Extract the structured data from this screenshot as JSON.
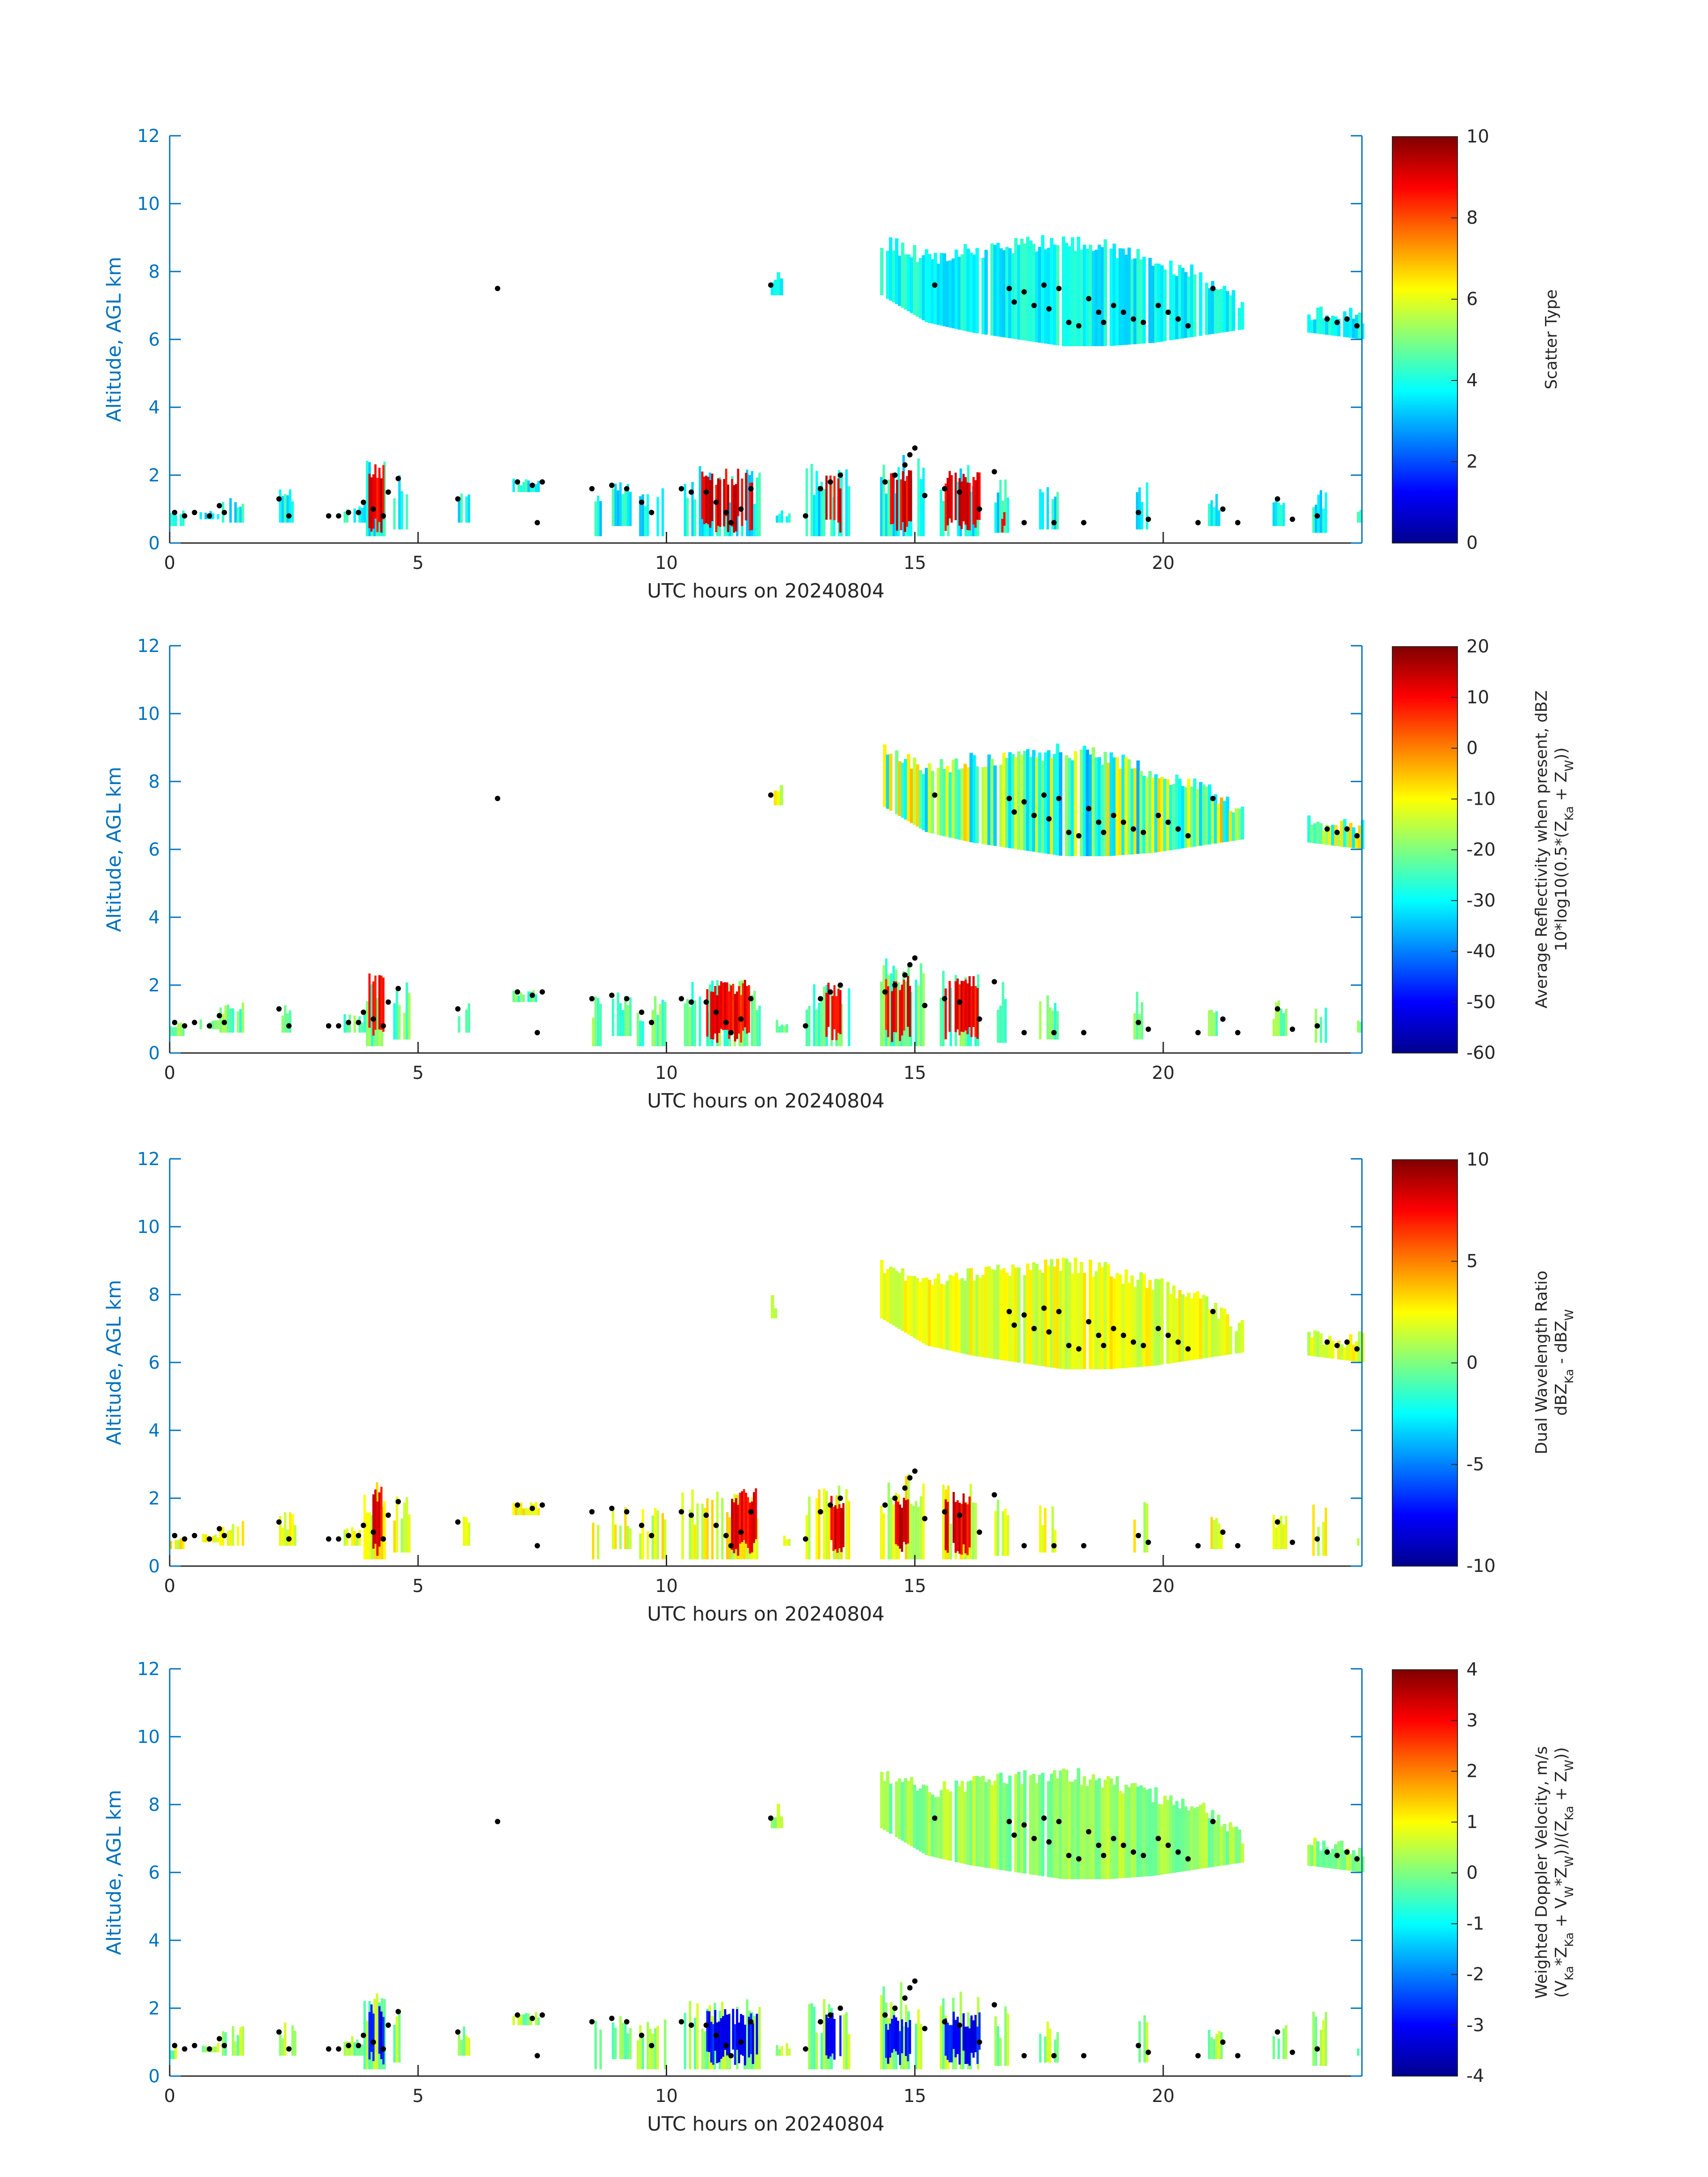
{
  "colormap": [
    "#00008F",
    "#0000FF",
    "#0080FF",
    "#00FFFF",
    "#80FF80",
    "#FFFF00",
    "#FF8000",
    "#FF0000",
    "#800000"
  ],
  "colors": {
    "axis_blue": "#0072BD",
    "text_dark": "#262626",
    "marker": "#000000"
  },
  "chart_data": [
    {
      "type": "heatmap",
      "xlabel": "UTC hours on 20240804",
      "ylabel": "Altitude, AGL km",
      "xlim": [
        0,
        24
      ],
      "ylim": [
        0,
        12
      ],
      "xticks": [
        "0",
        "5",
        "10",
        "15",
        "20"
      ],
      "yticks": [
        "0",
        "2",
        "4",
        "6",
        "8",
        "10",
        "12"
      ],
      "colorbar": {
        "label_lines": [
          "Scatter Type"
        ],
        "range": [
          0,
          10
        ],
        "ticks": [
          "0",
          "2",
          "4",
          "6",
          "8",
          "10"
        ]
      },
      "fill_value": 3.8,
      "high_value": 9
    },
    {
      "type": "heatmap",
      "xlabel": "UTC hours on 20240804",
      "ylabel": "Altitude, AGL km",
      "xlim": [
        0,
        24
      ],
      "ylim": [
        0,
        12
      ],
      "xticks": [
        "0",
        "5",
        "10",
        "15",
        "20"
      ],
      "yticks": [
        "0",
        "2",
        "4",
        "6",
        "8",
        "10",
        "12"
      ],
      "colorbar": {
        "label_lines": [
          "Average Reflectivity when present, dBZ",
          "10*log10(0.5*(Z_Ka + Z_W))"
        ],
        "range": [
          -60,
          20
        ],
        "ticks": [
          "-60",
          "-50",
          "-40",
          "-30",
          "-20",
          "-10",
          "0",
          "10",
          "20"
        ]
      },
      "fill_value": -22,
      "high_value": 10
    },
    {
      "type": "heatmap",
      "xlabel": "UTC hours on 20240804",
      "ylabel": "Altitude, AGL km",
      "xlim": [
        0,
        24
      ],
      "ylim": [
        0,
        12
      ],
      "xticks": [
        "0",
        "5",
        "10",
        "15",
        "20"
      ],
      "yticks": [
        "0",
        "2",
        "4",
        "6",
        "8",
        "10",
        "12"
      ],
      "colorbar": {
        "label_lines": [
          "Dual Wavelength Ratio",
          "dBZ_Ka - dBZ_W"
        ],
        "range": [
          -10,
          10
        ],
        "ticks": [
          "-10",
          "-5",
          "0",
          "5",
          "10"
        ]
      },
      "fill_value": 2,
      "high_value": 8
    },
    {
      "type": "heatmap",
      "xlabel": "UTC hours on 20240804",
      "ylabel": "Altitude, AGL km",
      "xlim": [
        0,
        24
      ],
      "ylim": [
        0,
        12
      ],
      "xticks": [
        "0",
        "5",
        "10",
        "15",
        "20"
      ],
      "yticks": [
        "0",
        "2",
        "4",
        "6",
        "8",
        "10",
        "12"
      ],
      "colorbar": {
        "label_lines": [
          "Weighted Doppler Velocity, m/s",
          "(V_Ka*Z_Ka + V_W*Z_W))/(Z_Ka + Z_W))"
        ],
        "range": [
          -4,
          4
        ],
        "ticks": [
          "-4",
          "-3",
          "-2",
          "-1",
          "0",
          "1",
          "2",
          "3",
          "4"
        ]
      },
      "fill_value": 0.2,
      "high_value": -3
    }
  ],
  "cloud_regions": [
    {
      "x0": 14.3,
      "x1": 21.6,
      "ybot": [
        7.3,
        6.5,
        6.2,
        6.0,
        5.8,
        5.8,
        5.9,
        6.1,
        6.3
      ],
      "ytop": [
        8.9,
        8.4,
        8.6,
        8.8,
        8.9,
        8.7,
        8.3,
        7.9,
        7.0
      ]
    },
    {
      "x0": 22.9,
      "x1": 24.0,
      "ybot": [
        6.2,
        6.1,
        6.0
      ],
      "ytop": [
        6.8,
        6.7,
        6.7
      ]
    },
    {
      "x0": 12.1,
      "x1": 12.3,
      "ybot": [
        7.3,
        7.3
      ],
      "ytop": [
        7.8,
        7.8
      ]
    }
  ],
  "low_columns": [
    [
      0.0,
      0.5,
      1.0,
      0.3
    ],
    [
      0.6,
      0.7,
      1.0,
      0.4
    ],
    [
      1.0,
      0.6,
      1.5,
      0.5
    ],
    [
      2.2,
      0.6,
      1.6,
      0.3
    ],
    [
      3.5,
      0.6,
      1.2,
      0.5
    ],
    [
      3.9,
      0.2,
      2.5,
      0.4
    ],
    [
      4.5,
      0.4,
      2.1,
      0.3
    ],
    [
      5.8,
      0.6,
      1.5,
      0.2
    ],
    [
      6.9,
      1.5,
      1.9,
      0.5
    ],
    [
      8.5,
      0.2,
      1.8,
      0.2
    ],
    [
      8.9,
      0.5,
      1.8,
      0.4
    ],
    [
      9.4,
      0.2,
      1.8,
      0.6
    ],
    [
      10.3,
      0.2,
      2.3,
      1.6
    ],
    [
      12.2,
      0.6,
      1.0,
      0.3
    ],
    [
      12.8,
      0.2,
      2.4,
      0.9
    ],
    [
      14.3,
      0.2,
      2.8,
      0.9
    ],
    [
      15.5,
      0.2,
      2.5,
      0.8
    ],
    [
      16.6,
      0.3,
      2.1,
      0.3
    ],
    [
      17.5,
      0.4,
      1.8,
      0.4
    ],
    [
      19.4,
      0.4,
      1.9,
      0.3
    ],
    [
      20.9,
      0.5,
      1.5,
      0.3
    ],
    [
      22.2,
      0.5,
      1.6,
      0.3
    ],
    [
      23.0,
      0.3,
      1.9,
      0.3
    ],
    [
      23.9,
      0.6,
      1.0,
      0.1
    ]
  ],
  "intense_columns": [
    [
      [
        4.0,
        0.3,
        2.4,
        0.3
      ],
      [
        10.7,
        0.3,
        2.2,
        1.0
      ],
      [
        13.2,
        0.3,
        2.1,
        0.3
      ],
      [
        14.5,
        0.3,
        2.3,
        0.4
      ],
      [
        15.6,
        0.3,
        2.2,
        0.7
      ],
      [
        16.7,
        0.3,
        1.2,
        0.1
      ]
    ],
    [
      [
        4.0,
        0.3,
        2.4,
        0.3
      ],
      [
        10.8,
        0.3,
        2.2,
        0.9
      ],
      [
        13.2,
        0.3,
        2.1,
        0.3
      ],
      [
        14.4,
        0.3,
        2.3,
        0.5
      ],
      [
        15.6,
        0.3,
        2.3,
        0.7
      ]
    ],
    [
      [
        4.0,
        0.3,
        2.4,
        0.3
      ],
      [
        11.3,
        0.3,
        2.3,
        0.5
      ],
      [
        13.3,
        0.3,
        2.1,
        0.3
      ],
      [
        14.6,
        0.3,
        2.1,
        0.3
      ],
      [
        15.6,
        0.3,
        2.3,
        0.5
      ]
    ],
    [
      [
        4.0,
        0.3,
        2.2,
        0.3
      ],
      [
        10.8,
        0.3,
        2.0,
        1.0
      ],
      [
        13.2,
        0.3,
        2.0,
        0.3
      ],
      [
        14.4,
        0.3,
        1.8,
        0.5
      ],
      [
        15.6,
        0.3,
        1.9,
        0.7
      ]
    ]
  ],
  "markers": [
    [
      0.1,
      0.9
    ],
    [
      0.3,
      0.8
    ],
    [
      0.5,
      0.9
    ],
    [
      0.8,
      0.8
    ],
    [
      1.0,
      1.1
    ],
    [
      1.1,
      0.9
    ],
    [
      2.2,
      1.3
    ],
    [
      2.4,
      0.8
    ],
    [
      3.2,
      0.8
    ],
    [
      3.4,
      0.8
    ],
    [
      3.6,
      0.9
    ],
    [
      3.8,
      0.9
    ],
    [
      3.9,
      1.2
    ],
    [
      4.1,
      1.0
    ],
    [
      4.3,
      0.8
    ],
    [
      4.4,
      1.5
    ],
    [
      4.6,
      1.9
    ],
    [
      5.8,
      1.3
    ],
    [
      6.6,
      7.5
    ],
    [
      7.0,
      1.8
    ],
    [
      7.3,
      1.7
    ],
    [
      7.5,
      1.8
    ],
    [
      7.4,
      0.6
    ],
    [
      8.5,
      1.6
    ],
    [
      8.9,
      1.7
    ],
    [
      9.2,
      1.6
    ],
    [
      9.5,
      1.2
    ],
    [
      9.7,
      0.9
    ],
    [
      10.3,
      1.6
    ],
    [
      10.5,
      1.5
    ],
    [
      10.8,
      1.5
    ],
    [
      11.0,
      1.2
    ],
    [
      11.2,
      0.9
    ],
    [
      11.3,
      0.6
    ],
    [
      11.5,
      1.0
    ],
    [
      11.7,
      1.6
    ],
    [
      12.1,
      7.6
    ],
    [
      12.8,
      0.8
    ],
    [
      13.1,
      1.6
    ],
    [
      13.3,
      1.8
    ],
    [
      13.5,
      2.0
    ],
    [
      14.4,
      1.8
    ],
    [
      14.6,
      2.0
    ],
    [
      14.8,
      2.3
    ],
    [
      14.9,
      2.6
    ],
    [
      15.0,
      2.8
    ],
    [
      15.2,
      1.4
    ],
    [
      15.4,
      7.6
    ],
    [
      15.6,
      1.6
    ],
    [
      15.9,
      1.5
    ],
    [
      16.3,
      1.0
    ],
    [
      16.6,
      2.1
    ],
    [
      16.9,
      7.5
    ],
    [
      17.0,
      7.1
    ],
    [
      17.2,
      7.4
    ],
    [
      17.4,
      7.0
    ],
    [
      17.6,
      7.6
    ],
    [
      17.7,
      6.9
    ],
    [
      17.9,
      7.5
    ],
    [
      18.1,
      6.5
    ],
    [
      18.3,
      6.4
    ],
    [
      18.5,
      7.2
    ],
    [
      18.7,
      6.8
    ],
    [
      18.8,
      6.5
    ],
    [
      19.0,
      7.0
    ],
    [
      19.2,
      6.8
    ],
    [
      19.4,
      6.6
    ],
    [
      19.6,
      6.5
    ],
    [
      19.9,
      7.0
    ],
    [
      20.1,
      6.8
    ],
    [
      20.3,
      6.6
    ],
    [
      20.5,
      6.4
    ],
    [
      21.0,
      7.5
    ],
    [
      21.2,
      1.0
    ],
    [
      22.3,
      1.3
    ],
    [
      22.6,
      0.7
    ],
    [
      23.1,
      0.8
    ],
    [
      23.3,
      6.6
    ],
    [
      23.5,
      6.5
    ],
    [
      23.7,
      6.6
    ],
    [
      23.9,
      6.4
    ],
    [
      17.2,
      0.6
    ],
    [
      17.8,
      0.6
    ],
    [
      18.4,
      0.6
    ],
    [
      19.5,
      0.9
    ],
    [
      19.7,
      0.7
    ],
    [
      20.7,
      0.6
    ],
    [
      21.5,
      0.6
    ]
  ]
}
